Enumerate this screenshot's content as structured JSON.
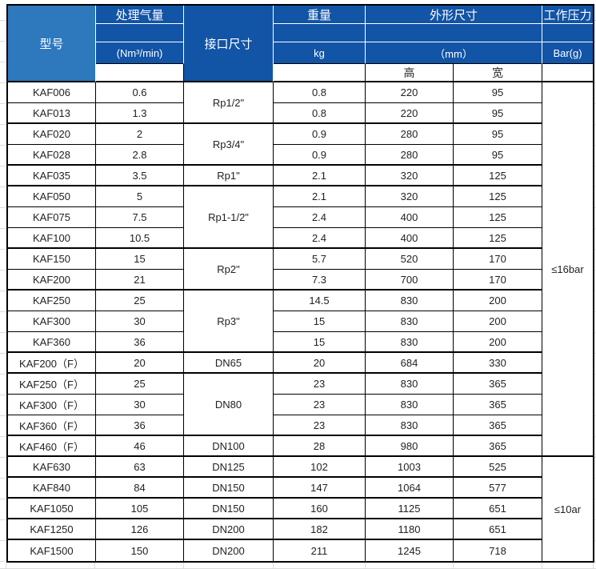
{
  "colors": {
    "header_dark": "#1254A6",
    "header_light": "#2E78BE",
    "border": "#000000",
    "body_text": "#222222"
  },
  "header": {
    "model": "型号",
    "capacity_title": "处理气量",
    "capacity_unit": "(Nm³/min)",
    "interface": "接口尺寸",
    "weight_title": "重量",
    "weight_unit": "kg",
    "dimensions_title": "外形尺寸",
    "dimensions_unit": "（mm）",
    "dim_height": "高",
    "dim_width": "宽",
    "pressure_title": "工作压力",
    "pressure_unit": "Bar(g)"
  },
  "rows": [
    {
      "model": "KAF006",
      "capacity": "0.6",
      "weight": "0.8",
      "height": "220",
      "width": "95"
    },
    {
      "model": "KAF013",
      "capacity": "1.3",
      "weight": "0.8",
      "height": "220",
      "width": "95"
    },
    {
      "model": "KAF020",
      "capacity": "2",
      "weight": "0.9",
      "height": "280",
      "width": "95"
    },
    {
      "model": "KAF028",
      "capacity": "2.8",
      "weight": "0.9",
      "height": "280",
      "width": "95"
    },
    {
      "model": "KAF035",
      "capacity": "3.5",
      "weight": "2.1",
      "height": "320",
      "width": "125"
    },
    {
      "model": "KAF050",
      "capacity": "5",
      "weight": "2.1",
      "height": "320",
      "width": "125"
    },
    {
      "model": "KAF075",
      "capacity": "7.5",
      "weight": "2.4",
      "height": "400",
      "width": "125"
    },
    {
      "model": "KAF100",
      "capacity": "10.5",
      "weight": "2.4",
      "height": "400",
      "width": "125"
    },
    {
      "model": "KAF150",
      "capacity": "15",
      "weight": "5.7",
      "height": "520",
      "width": "170"
    },
    {
      "model": "KAF200",
      "capacity": "21",
      "weight": "7.3",
      "height": "700",
      "width": "170"
    },
    {
      "model": "KAF250",
      "capacity": "25",
      "weight": "14.5",
      "height": "830",
      "width": "200"
    },
    {
      "model": "KAF300",
      "capacity": "30",
      "weight": "15",
      "height": "830",
      "width": "200"
    },
    {
      "model": "KAF360",
      "capacity": "36",
      "weight": "15",
      "height": "830",
      "width": "200"
    },
    {
      "model": "KAF200（F）",
      "capacity": "20",
      "weight": "20",
      "height": "684",
      "width": "330"
    },
    {
      "model": "KAF250（F）",
      "capacity": "25",
      "weight": "23",
      "height": "830",
      "width": "365"
    },
    {
      "model": "KAF300（F）",
      "capacity": "30",
      "weight": "23",
      "height": "830",
      "width": "365"
    },
    {
      "model": "KAF360（F）",
      "capacity": "36",
      "weight": "23",
      "height": "830",
      "width": "365"
    },
    {
      "model": "KAF460（F）",
      "capacity": "46",
      "weight": "28",
      "height": "980",
      "width": "365"
    },
    {
      "model": "KAF630",
      "capacity": "63",
      "weight": "102",
      "height": "1003",
      "width": "525"
    },
    {
      "model": "KAF840",
      "capacity": "84",
      "weight": "147",
      "height": "1064",
      "width": "577"
    },
    {
      "model": "KAF1050",
      "capacity": "105",
      "weight": "160",
      "height": "1125",
      "width": "651"
    },
    {
      "model": "KAF1250",
      "capacity": "126",
      "weight": "182",
      "height": "1180",
      "width": "651"
    },
    {
      "model": "KAF1500",
      "capacity": "150",
      "weight": "211",
      "height": "1245",
      "width": "718"
    }
  ],
  "interface_groups": [
    {
      "label": "Rp1/2\"",
      "start": 1,
      "span": 2
    },
    {
      "label": "Rp3/4\"",
      "start": 3,
      "span": 2
    },
    {
      "label": "Rp1\"",
      "start": 5,
      "span": 1
    },
    {
      "label": "Rp1-1/2\"",
      "start": 6,
      "span": 3
    },
    {
      "label": "Rp2\"",
      "start": 9,
      "span": 2
    },
    {
      "label": "Rp3\"",
      "start": 11,
      "span": 3
    },
    {
      "label": "DN65",
      "start": 14,
      "span": 1
    },
    {
      "label": "DN80",
      "start": 15,
      "span": 3
    },
    {
      "label": "DN100",
      "start": 18,
      "span": 1
    },
    {
      "label": "DN125",
      "start": 19,
      "span": 1
    },
    {
      "label": "DN150",
      "start": 20,
      "span": 1
    },
    {
      "label": "DN150",
      "start": 21,
      "span": 1
    },
    {
      "label": "DN200",
      "start": 22,
      "span": 1
    },
    {
      "label": "DN200",
      "start": 23,
      "span": 1
    }
  ],
  "pressure_groups": [
    {
      "label": "≤16bar",
      "start": 1,
      "span": 18
    },
    {
      "label": "≤10ar",
      "start": 19,
      "span": 5
    }
  ]
}
